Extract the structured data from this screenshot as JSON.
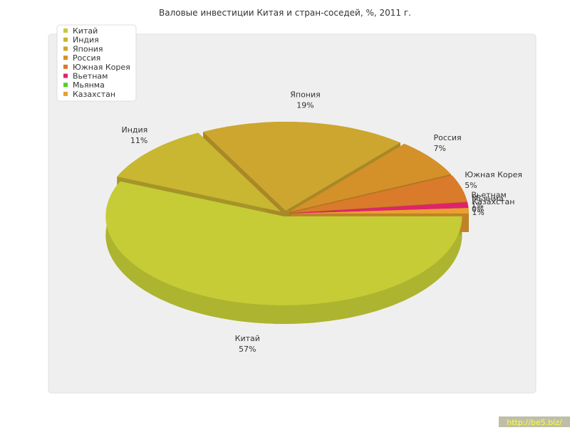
{
  "chart_data": {
    "type": "pie3d",
    "title": "Валовые инвестиции Китая и стран-соседей, %, 2011 г.",
    "categories": [
      "Китай",
      "Индия",
      "Япония",
      "Россия",
      "Южная Корея",
      "Вьетнам",
      "Мьянма",
      "Казахстан"
    ],
    "values": [
      57,
      11,
      19,
      7,
      5,
      1,
      0,
      1
    ],
    "value_labels": [
      "57%",
      "11%",
      "19%",
      "7%",
      "5%",
      "1%",
      "0%",
      "1%"
    ],
    "colors": [
      "#c5cc35",
      "#c9b631",
      "#cda630",
      "#d49129",
      "#d97b2a",
      "#e0226e",
      "#4fd12a",
      "#e8a030"
    ],
    "legend": "top-left"
  },
  "watermark": "http://be5.biz/"
}
